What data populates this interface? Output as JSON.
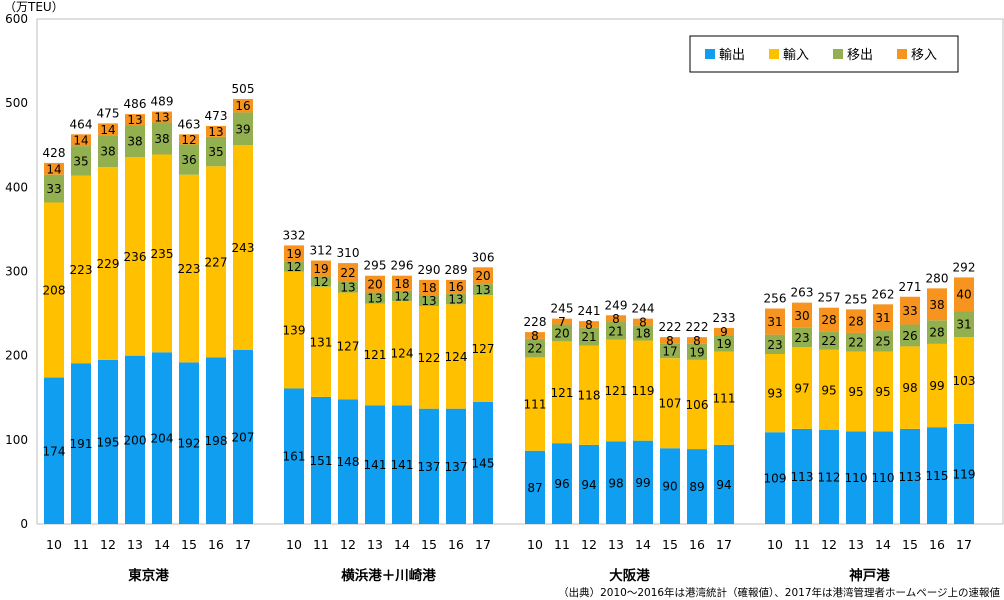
{
  "chart_data": {
    "type": "bar",
    "unit_label": "（万TEU）",
    "ylim": [
      0,
      600
    ],
    "y_ticks": [
      "0",
      "100",
      "200",
      "300",
      "400",
      "500",
      "600"
    ],
    "years": [
      "10",
      "11",
      "12",
      "13",
      "14",
      "15",
      "16",
      "17"
    ],
    "colors": {
      "輸出": "#0f9ef0",
      "輸入": "#ffc000",
      "移出": "#92b050",
      "移入": "#f79420"
    },
    "legend": [
      "輸出",
      "輸入",
      "移出",
      "移入"
    ],
    "legend_position": "top-right",
    "groups": [
      {
        "name": "東京港",
        "series": [
          {
            "name": "輸出",
            "values": [
              174,
              191,
              195,
              200,
              204,
              192,
              198,
              207
            ]
          },
          {
            "name": "輸入",
            "values": [
              208,
              223,
              229,
              236,
              235,
              223,
              227,
              243
            ]
          },
          {
            "name": "移出",
            "values": [
              33,
              35,
              38,
              38,
              38,
              36,
              35,
              39
            ]
          },
          {
            "name": "移入",
            "values": [
              14,
              14,
              14,
              13,
              13,
              12,
              13,
              16
            ]
          }
        ],
        "totals": [
          428,
          464,
          475,
          486,
          489,
          463,
          473,
          505
        ]
      },
      {
        "name": "横浜港＋川崎港",
        "series": [
          {
            "name": "輸出",
            "values": [
              161,
              151,
              148,
              141,
              141,
              137,
              137,
              145
            ]
          },
          {
            "name": "輸入",
            "values": [
              139,
              131,
              127,
              121,
              124,
              122,
              124,
              127
            ]
          },
          {
            "name": "移出",
            "values": [
              12,
              12,
              13,
              13,
              12,
              13,
              13,
              13
            ]
          },
          {
            "name": "移入",
            "values": [
              19,
              19,
              22,
              20,
              18,
              18,
              16,
              20
            ]
          }
        ],
        "totals": [
          332,
          312,
          310,
          295,
          296,
          290,
          289,
          306
        ]
      },
      {
        "name": "大阪港",
        "series": [
          {
            "name": "輸出",
            "values": [
              87,
              96,
              94,
              98,
              99,
              90,
              89,
              94
            ]
          },
          {
            "name": "輸入",
            "values": [
              111,
              121,
              118,
              121,
              119,
              107,
              106,
              111
            ]
          },
          {
            "name": "移出",
            "values": [
              22,
              20,
              21,
              21,
              18,
              17,
              19,
              19
            ]
          },
          {
            "name": "移入",
            "values": [
              8,
              7,
              8,
              8,
              8,
              8,
              8,
              9
            ]
          }
        ],
        "totals": [
          228,
          245,
          241,
          249,
          244,
          222,
          222,
          233
        ]
      },
      {
        "name": "神戸港",
        "series": [
          {
            "name": "輸出",
            "values": [
              109,
              113,
              112,
              110,
              110,
              113,
              115,
              119
            ]
          },
          {
            "name": "輸入",
            "values": [
              93,
              97,
              95,
              95,
              95,
              98,
              99,
              103
            ]
          },
          {
            "name": "移出",
            "values": [
              23,
              23,
              22,
              22,
              25,
              26,
              28,
              31
            ]
          },
          {
            "name": "移入",
            "values": [
              31,
              30,
              28,
              28,
              31,
              33,
              38,
              40
            ]
          }
        ],
        "totals": [
          256,
          263,
          257,
          255,
          262,
          271,
          280,
          292
        ]
      }
    ],
    "source_note": "（出典）2010～2016年は港湾統計（確報値）、2017年は港湾管理者ホームページ上の速報値"
  }
}
